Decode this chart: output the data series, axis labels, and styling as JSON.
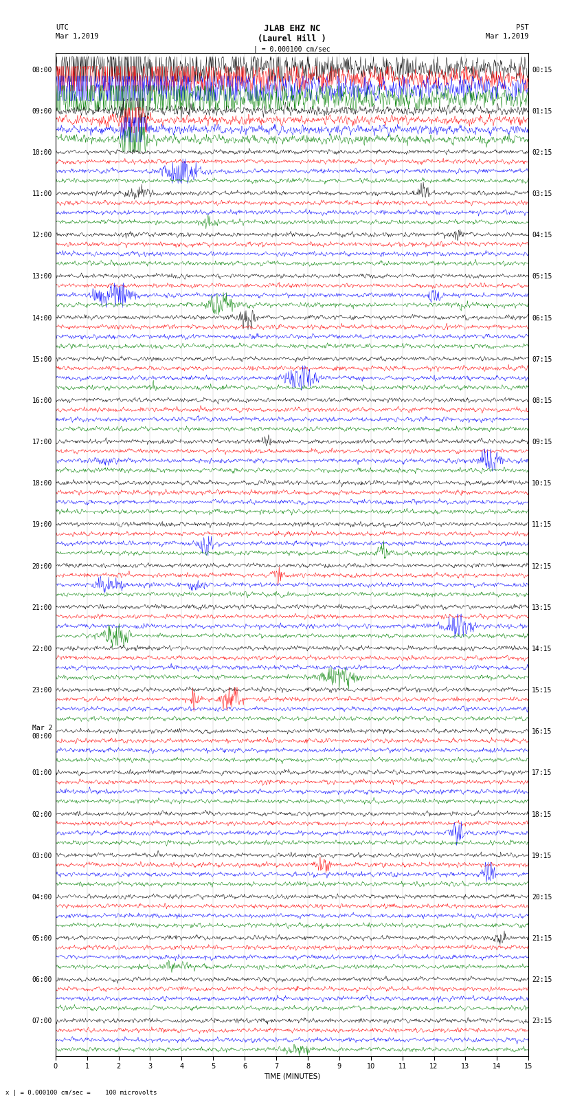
{
  "title_line1": "JLAB EHZ NC",
  "title_line2": "(Laurel Hill )",
  "scale_label": "| = 0.000100 cm/sec",
  "left_label_top": "UTC",
  "left_label_date": "Mar 1,2019",
  "right_label_top": "PST",
  "right_label_date": "Mar 1,2019",
  "xlabel": "TIME (MINUTES)",
  "bottom_note": "x | = 0.000100 cm/sec =    100 microvolts",
  "utc_times": [
    "08:00",
    "09:00",
    "10:00",
    "11:00",
    "12:00",
    "13:00",
    "14:00",
    "15:00",
    "16:00",
    "17:00",
    "18:00",
    "19:00",
    "20:00",
    "21:00",
    "22:00",
    "23:00",
    "Mar 2\n00:00",
    "01:00",
    "02:00",
    "03:00",
    "04:00",
    "05:00",
    "06:00",
    "07:00"
  ],
  "pst_times": [
    "00:15",
    "01:15",
    "02:15",
    "03:15",
    "04:15",
    "05:15",
    "06:15",
    "07:15",
    "08:15",
    "09:15",
    "10:15",
    "11:15",
    "12:15",
    "13:15",
    "14:15",
    "15:15",
    "16:15",
    "17:15",
    "18:15",
    "19:15",
    "20:15",
    "21:15",
    "22:15",
    "23:15"
  ],
  "n_hours": 24,
  "n_traces_per_hour": 4,
  "colors": [
    "black",
    "red",
    "blue",
    "green"
  ],
  "time_minutes": 15,
  "samples_per_trace": 900,
  "bg_color": "white",
  "title_fontsize": 9,
  "tick_fontsize": 7.5
}
